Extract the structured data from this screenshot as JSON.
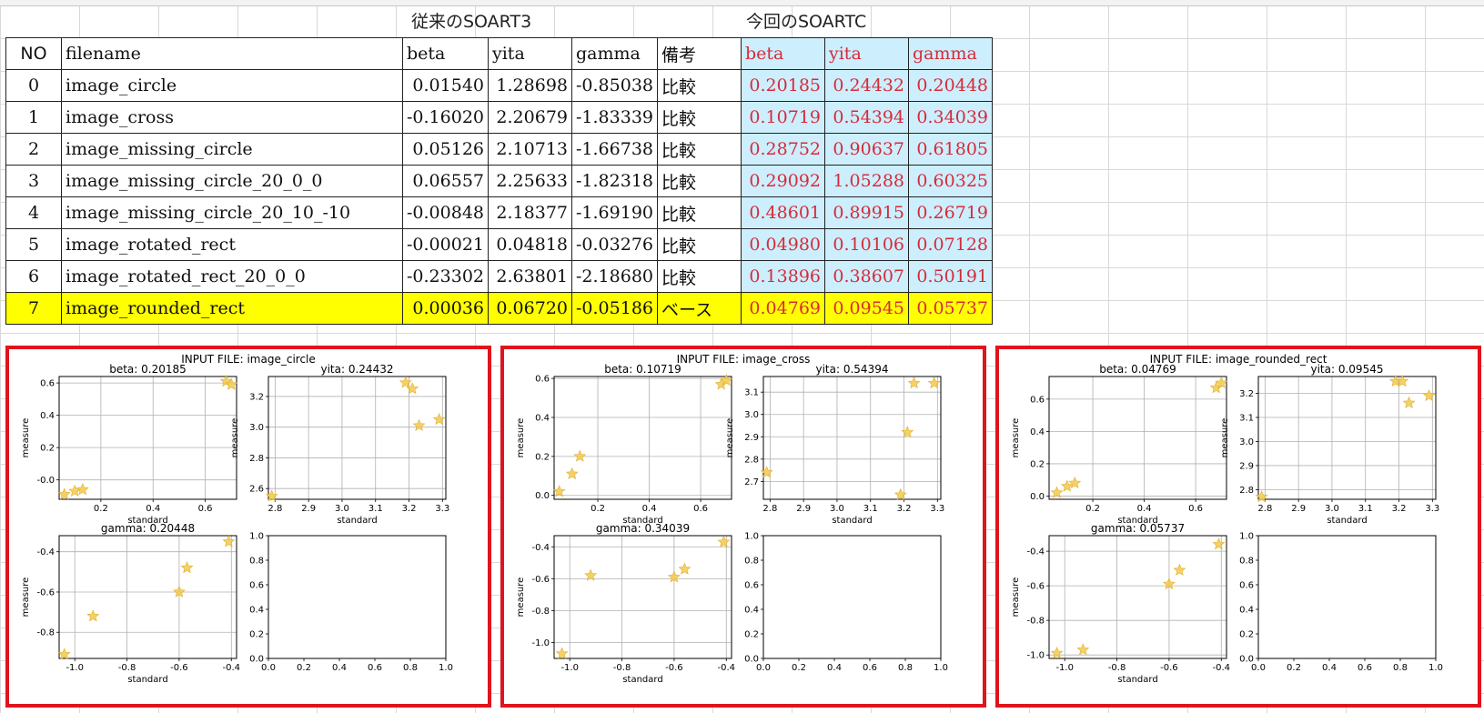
{
  "header": {
    "group_old": "従来のSOART3",
    "group_new": "今回のSOARTC"
  },
  "table": {
    "columns": [
      "NO",
      "filename",
      "beta",
      "yita",
      "gamma",
      "備考",
      "beta",
      "yita",
      "gamma"
    ],
    "rows": [
      {
        "no": "0",
        "filename": "image_circle",
        "beta": "0.01540",
        "yita": "1.28698",
        "gamma": "-0.85038",
        "remark": "比較",
        "beta2": "0.20185",
        "yita2": "0.24432",
        "gamma2": "0.20448"
      },
      {
        "no": "1",
        "filename": "image_cross",
        "beta": "-0.16020",
        "yita": "2.20679",
        "gamma": "-1.83339",
        "remark": "比較",
        "beta2": "0.10719",
        "yita2": "0.54394",
        "gamma2": "0.34039"
      },
      {
        "no": "2",
        "filename": "image_missing_circle",
        "beta": "0.05126",
        "yita": "2.10713",
        "gamma": "-1.66738",
        "remark": "比較",
        "beta2": "0.28752",
        "yita2": "0.90637",
        "gamma2": "0.61805"
      },
      {
        "no": "3",
        "filename": "image_missing_circle_20_0_0",
        "beta": "0.06557",
        "yita": "2.25633",
        "gamma": "-1.82318",
        "remark": "比較",
        "beta2": "0.29092",
        "yita2": "1.05288",
        "gamma2": "0.60325"
      },
      {
        "no": "4",
        "filename": "image_missing_circle_20_10_-10",
        "beta": "-0.00848",
        "yita": "2.18377",
        "gamma": "-1.69190",
        "remark": "比較",
        "beta2": "0.48601",
        "yita2": "0.89915",
        "gamma2": "0.26719"
      },
      {
        "no": "5",
        "filename": "image_rotated_rect",
        "beta": "-0.00021",
        "yita": "0.04818",
        "gamma": "-0.03276",
        "remark": "比較",
        "beta2": "0.04980",
        "yita2": "0.10106",
        "gamma2": "0.07128"
      },
      {
        "no": "6",
        "filename": "image_rotated_rect_20_0_0",
        "beta": "-0.23302",
        "yita": "2.63801",
        "gamma": "-2.18680",
        "remark": "比較",
        "beta2": "0.13896",
        "yita2": "0.38607",
        "gamma2": "0.50191"
      },
      {
        "no": "7",
        "filename": "image_rounded_rect",
        "beta": "0.00036",
        "yita": "0.06720",
        "gamma": "-0.05186",
        "remark": "ベース",
        "beta2": "0.04769",
        "yita2": "0.09545",
        "gamma2": "0.05737"
      }
    ]
  },
  "colors": {
    "marker": "#f2c94c",
    "panel_border": "#e0141c",
    "highlight_row": "#ffff00",
    "new_cols_bg": "#cdeefc",
    "new_cols_text": "#d62b3a"
  },
  "chart_data": [
    {
      "type": "scatter",
      "title": "INPUT FILE: image_circle",
      "xlabel": "standard",
      "ylabel": "measure",
      "subplots": [
        {
          "title": "beta: 0.20185",
          "xlim": [
            0.04,
            0.72
          ],
          "ylim": [
            -0.12,
            0.64
          ],
          "xticks": [
            "0.2",
            "0.4",
            "0.6"
          ],
          "yticks": [
            "-0.0",
            "0.2",
            "0.4",
            "0.6"
          ],
          "x": [
            0.06,
            0.1,
            0.13,
            0.68,
            0.7
          ],
          "y": [
            -0.09,
            -0.07,
            -0.06,
            0.61,
            0.59
          ]
        },
        {
          "title": "yita: 0.24432",
          "xlim": [
            2.78,
            3.31
          ],
          "ylim": [
            2.53,
            3.33
          ],
          "xticks": [
            "2.8",
            "2.9",
            "3.0",
            "3.1",
            "3.2",
            "3.3"
          ],
          "yticks": [
            "2.6",
            "2.8",
            "3.0",
            "3.2"
          ],
          "x": [
            2.79,
            3.19,
            3.21,
            3.23,
            3.29
          ],
          "y": [
            2.55,
            3.29,
            3.25,
            3.01,
            3.05
          ]
        },
        {
          "title": "gamma: 0.20448",
          "xlim": [
            -1.06,
            -0.38
          ],
          "ylim": [
            -0.93,
            -0.32
          ],
          "xticks": [
            "-1.0",
            "-0.8",
            "-0.6",
            "-0.4"
          ],
          "yticks": [
            "-0.8",
            "-0.6",
            "-0.4"
          ],
          "x": [
            -1.04,
            -0.93,
            -0.6,
            -0.57,
            -0.41
          ],
          "y": [
            -0.91,
            -0.72,
            -0.6,
            -0.48,
            -0.35
          ]
        },
        {
          "title": "",
          "xlim": [
            0,
            1
          ],
          "ylim": [
            0,
            1
          ],
          "xticks": [
            "0.0",
            "0.2",
            "0.4",
            "0.6",
            "0.8",
            "1.0"
          ],
          "yticks": [
            "0.0",
            "0.2",
            "0.4",
            "0.6",
            "0.8",
            "1.0"
          ],
          "x": [],
          "y": []
        }
      ]
    },
    {
      "type": "scatter",
      "title": "INPUT FILE: image_cross",
      "xlabel": "standard",
      "ylabel": "measure",
      "subplots": [
        {
          "title": "beta: 0.10719",
          "xlim": [
            0.03,
            0.72
          ],
          "ylim": [
            -0.02,
            0.61
          ],
          "xticks": [
            "0.2",
            "0.4",
            "0.6"
          ],
          "yticks": [
            "0.0",
            "0.2",
            "0.4",
            "0.6"
          ],
          "x": [
            0.05,
            0.1,
            0.13,
            0.68,
            0.7
          ],
          "y": [
            0.02,
            0.11,
            0.2,
            0.57,
            0.59
          ]
        },
        {
          "title": "yita: 0.54394",
          "xlim": [
            2.78,
            3.31
          ],
          "ylim": [
            2.62,
            3.17
          ],
          "xticks": [
            "2.8",
            "2.9",
            "3.0",
            "3.1",
            "3.2",
            "3.3"
          ],
          "yticks": [
            "2.7",
            "2.8",
            "2.9",
            "3.0",
            "3.1"
          ],
          "x": [
            2.79,
            3.19,
            3.21,
            3.23,
            3.29
          ],
          "y": [
            2.74,
            2.64,
            2.92,
            3.14,
            3.14
          ]
        },
        {
          "title": "gamma: 0.34039",
          "xlim": [
            -1.06,
            -0.38
          ],
          "ylim": [
            -1.1,
            -0.33
          ],
          "xticks": [
            "-1.0",
            "-0.8",
            "-0.6",
            "-0.4"
          ],
          "yticks": [
            "-1.0",
            "-0.8",
            "-0.6",
            "-0.4"
          ],
          "x": [
            -1.03,
            -0.92,
            -0.6,
            -0.56,
            -0.41
          ],
          "y": [
            -1.07,
            -0.58,
            -0.59,
            -0.54,
            -0.37
          ]
        },
        {
          "title": "",
          "xlim": [
            0,
            1
          ],
          "ylim": [
            0,
            1
          ],
          "xticks": [
            "0.0",
            "0.2",
            "0.4",
            "0.6",
            "0.8",
            "1.0"
          ],
          "yticks": [
            "0.0",
            "0.2",
            "0.4",
            "0.6",
            "0.8",
            "1.0"
          ],
          "x": [],
          "y": []
        }
      ]
    },
    {
      "type": "scatter",
      "title": "INPUT FILE: image_rounded_rect",
      "xlabel": "standard",
      "ylabel": "measure",
      "subplots": [
        {
          "title": "beta: 0.04769",
          "xlim": [
            0.03,
            0.72
          ],
          "ylim": [
            -0.02,
            0.74
          ],
          "xticks": [
            "0.2",
            "0.4",
            "0.6"
          ],
          "yticks": [
            "0.0",
            "0.2",
            "0.4",
            "0.6"
          ],
          "x": [
            0.06,
            0.1,
            0.13,
            0.68,
            0.7
          ],
          "y": [
            0.02,
            0.06,
            0.08,
            0.67,
            0.7
          ]
        },
        {
          "title": "yita: 0.09545",
          "xlim": [
            2.78,
            3.31
          ],
          "ylim": [
            2.76,
            3.27
          ],
          "xticks": [
            "2.8",
            "2.9",
            "3.0",
            "3.1",
            "3.2",
            "3.3"
          ],
          "yticks": [
            "2.8",
            "2.9",
            "3.0",
            "3.1",
            "3.2"
          ],
          "x": [
            2.79,
            3.19,
            3.21,
            3.23,
            3.29
          ],
          "y": [
            2.77,
            3.25,
            3.25,
            3.16,
            3.19
          ]
        },
        {
          "title": "gamma: 0.05737",
          "xlim": [
            -1.06,
            -0.38
          ],
          "ylim": [
            -1.02,
            -0.31
          ],
          "xticks": [
            "-1.0",
            "-0.8",
            "-0.6",
            "-0.4"
          ],
          "yticks": [
            "-1.0",
            "-0.8",
            "-0.6",
            "-0.4"
          ],
          "x": [
            -1.03,
            -0.93,
            -0.6,
            -0.56,
            -0.41
          ],
          "y": [
            -0.99,
            -0.97,
            -0.59,
            -0.51,
            -0.36
          ]
        },
        {
          "title": "",
          "xlim": [
            0,
            1
          ],
          "ylim": [
            0,
            1
          ],
          "xticks": [
            "0.0",
            "0.2",
            "0.4",
            "0.6",
            "0.8",
            "1.0"
          ],
          "yticks": [
            "0.0",
            "0.2",
            "0.4",
            "0.6",
            "0.8",
            "1.0"
          ],
          "x": [],
          "y": []
        }
      ]
    }
  ]
}
